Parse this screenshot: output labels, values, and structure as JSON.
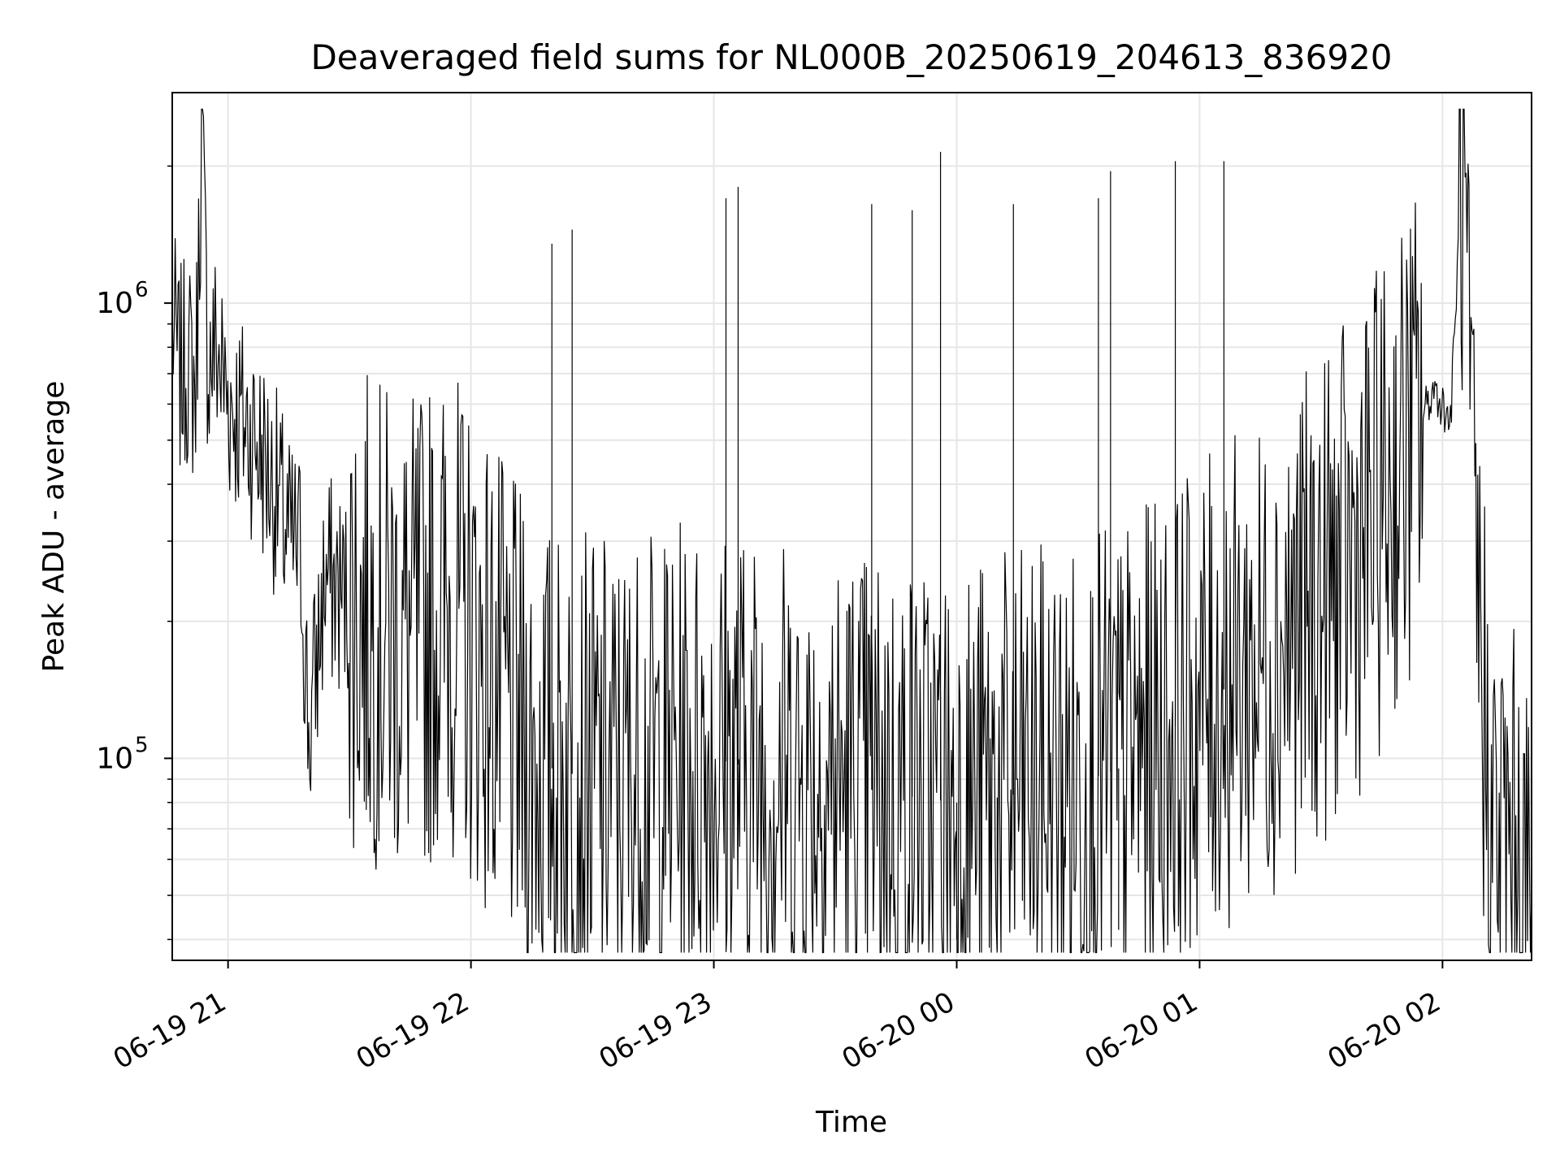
{
  "chart_data": {
    "type": "line",
    "title": "Deaveraged field sums for NL000B_20250619_204613_836920",
    "xlabel": "Time",
    "ylabel": "Peak ADU - average",
    "yscale": "log",
    "xlim": [
      "2025-06-19T20:46:13",
      "2025-06-20T02:22:00"
    ],
    "ylim": [
      36000,
      2900000
    ],
    "grid": true,
    "x_ticks": [
      {
        "value": "2025-06-19T21:00:00",
        "label": "06-19 21"
      },
      {
        "value": "2025-06-19T22:00:00",
        "label": "06-19 22"
      },
      {
        "value": "2025-06-19T23:00:00",
        "label": "06-19 23"
      },
      {
        "value": "2025-06-20T00:00:00",
        "label": "06-20 00"
      },
      {
        "value": "2025-06-20T01:00:00",
        "label": "06-20 01"
      },
      {
        "value": "2025-06-20T02:00:00",
        "label": "06-20 02"
      }
    ],
    "y_major_ticks": [
      {
        "value": 100000,
        "base": "10",
        "exp": "5"
      },
      {
        "value": 1000000,
        "base": "10",
        "exp": "6"
      }
    ],
    "y_minor_ticks": [
      40000,
      50000,
      60000,
      70000,
      80000,
      90000,
      200000,
      300000,
      400000,
      500000,
      600000,
      700000,
      800000,
      900000,
      2000000
    ],
    "series": [
      {
        "color": "#000000",
        "points": [
          [
            "2025-06-19T20:46:13",
            900000
          ],
          [
            "2025-06-19T20:48:00",
            700000
          ],
          [
            "2025-06-19T20:50:00",
            750000
          ],
          [
            "2025-06-19T20:52:00",
            650000
          ],
          [
            "2025-06-19T20:53:30",
            2400000
          ],
          [
            "2025-06-19T20:55:00",
            750000
          ],
          [
            "2025-06-19T20:57:00",
            800000
          ],
          [
            "2025-06-19T21:00:00",
            620000
          ],
          [
            "2025-06-19T21:03:00",
            560000
          ],
          [
            "2025-06-19T21:06:00",
            520000
          ],
          [
            "2025-06-19T21:09:00",
            450000
          ],
          [
            "2025-06-19T21:12:00",
            380000
          ],
          [
            "2025-06-19T21:15:00",
            300000
          ],
          [
            "2025-06-19T21:18:00",
            280000
          ],
          [
            "2025-06-19T21:20:00",
            110000
          ],
          [
            "2025-06-19T21:24:00",
            250000
          ],
          [
            "2025-06-19T21:28:00",
            230000
          ],
          [
            "2025-06-19T21:32:00",
            210000
          ],
          [
            "2025-06-19T21:36:00",
            200000
          ],
          [
            "2025-06-19T21:40:00",
            190000
          ],
          [
            "2025-06-19T21:45:00",
            180000
          ],
          [
            "2025-06-19T21:50:00",
            200000
          ],
          [
            "2025-06-19T21:55:00",
            210000
          ],
          [
            "2025-06-19T22:00:00",
            180000
          ],
          [
            "2025-06-19T22:05:00",
            150000
          ],
          [
            "2025-06-19T22:10:00",
            120000
          ],
          [
            "2025-06-19T22:15:00",
            100000
          ],
          [
            "2025-06-19T22:20:00",
            95000
          ],
          [
            "2025-06-19T22:30:00",
            90000
          ],
          [
            "2025-06-19T22:40:00",
            90000
          ],
          [
            "2025-06-19T22:50:00",
            95000
          ],
          [
            "2025-06-19T23:00:00",
            100000
          ],
          [
            "2025-06-19T23:10:00",
            95000
          ],
          [
            "2025-06-19T23:20:00",
            90000
          ],
          [
            "2025-06-19T23:30:00",
            88000
          ],
          [
            "2025-06-19T23:40:00",
            85000
          ],
          [
            "2025-06-19T23:50:00",
            82000
          ],
          [
            "2025-06-20T00:00:00",
            80000
          ],
          [
            "2025-06-20T00:10:00",
            82000
          ],
          [
            "2025-06-20T00:20:00",
            85000
          ],
          [
            "2025-06-20T00:30:00",
            88000
          ],
          [
            "2025-06-20T00:40:00",
            95000
          ],
          [
            "2025-06-20T00:50:00",
            110000
          ],
          [
            "2025-06-20T01:00:00",
            130000
          ],
          [
            "2025-06-20T01:10:00",
            150000
          ],
          [
            "2025-06-20T01:20:00",
            180000
          ],
          [
            "2025-06-20T01:30:00",
            220000
          ],
          [
            "2025-06-20T01:40:00",
            290000
          ],
          [
            "2025-06-20T01:50:00",
            450000
          ],
          [
            "2025-06-20T01:58:00",
            650000
          ],
          [
            "2025-06-20T02:02:00",
            550000
          ],
          [
            "2025-06-20T02:05:00",
            2200000
          ],
          [
            "2025-06-20T02:07:00",
            400000
          ],
          [
            "2025-06-20T02:10:00",
            140000
          ],
          [
            "2025-06-20T02:12:00",
            70000
          ],
          [
            "2025-06-20T02:16:00",
            62000
          ],
          [
            "2025-06-20T02:19:00",
            52000
          ],
          [
            "2025-06-20T02:22:00",
            42000
          ]
        ],
        "spikes": [
          [
            "2025-06-19T22:20:00",
            1350000
          ],
          [
            "2025-06-19T22:25:00",
            1450000
          ],
          [
            "2025-06-19T23:03:00",
            1700000
          ],
          [
            "2025-06-19T23:06:00",
            1800000
          ],
          [
            "2025-06-19T23:39:00",
            1650000
          ],
          [
            "2025-06-19T23:49:00",
            1600000
          ],
          [
            "2025-06-19T23:56:00",
            2150000
          ],
          [
            "2025-06-20T00:14:00",
            1650000
          ],
          [
            "2025-06-20T00:35:00",
            1700000
          ],
          [
            "2025-06-20T00:38:00",
            1950000
          ],
          [
            "2025-06-20T00:54:00",
            2050000
          ],
          [
            "2025-06-20T01:06:00",
            2050000
          ],
          [
            "2025-06-20T00:00:00",
            40000
          ],
          [
            "2025-06-20T00:10:00",
            38000
          ],
          [
            "2025-06-20T00:40:00",
            42000
          ]
        ]
      }
    ]
  }
}
